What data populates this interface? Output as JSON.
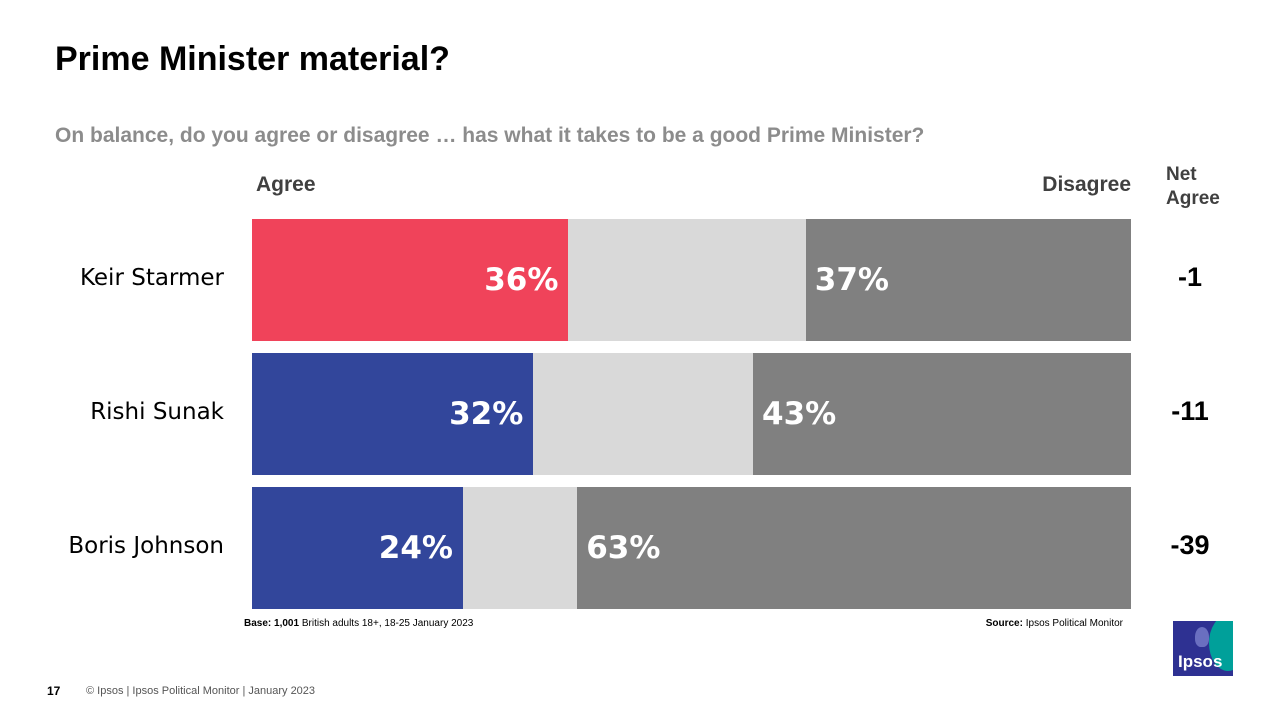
{
  "title": "Prime Minister material?",
  "subtitle": "On balance, do you agree or disagree … has what it takes to be a good Prime Minister?",
  "headers": {
    "agree": "Agree",
    "disagree": "Disagree",
    "net_line1": "Net",
    "net_line2": "Agree"
  },
  "colors": {
    "starmer_agree": "#f0435a",
    "agree_blue": "#32469b",
    "neutral": "#d9d9d9",
    "disagree": "#808080"
  },
  "chart_data": {
    "type": "bar",
    "orientation": "horizontal-stacked",
    "categories": [
      "Keir Starmer",
      "Rishi Sunak",
      "Boris Johnson"
    ],
    "series": [
      {
        "name": "Agree",
        "values": [
          36,
          32,
          24
        ]
      },
      {
        "name": "Disagree",
        "values": [
          37,
          43,
          63
        ]
      }
    ],
    "agree_labels": [
      "36%",
      "32%",
      "24%"
    ],
    "disagree_labels": [
      "37%",
      "43%",
      "63%"
    ],
    "net_agree": [
      "-1",
      "-11",
      "-39"
    ],
    "xlim": [
      0,
      100
    ],
    "grid": false
  },
  "notes": {
    "base_label": "Base:",
    "base_value": "1,001",
    "base_text": "British adults 18+, 18-25 January 2023",
    "source_label": "Source:",
    "source_text": "Ipsos  Political Monitor"
  },
  "footer": {
    "page_number": "17",
    "text": "© Ipsos | Ipsos Political Monitor | January 2023"
  },
  "logo": {
    "text": "Ipsos"
  }
}
